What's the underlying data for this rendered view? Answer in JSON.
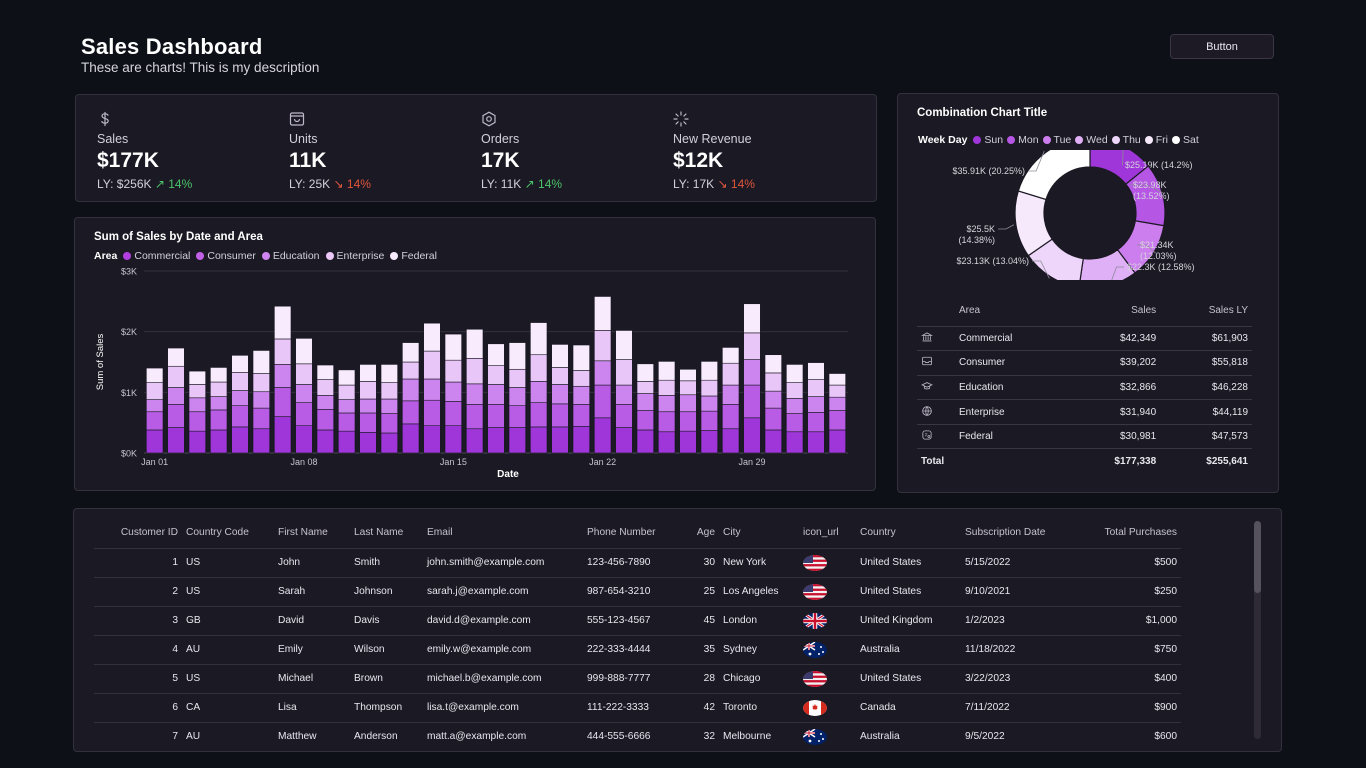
{
  "header": {
    "title": "Sales Dashboard",
    "description": "These are charts! This is my description",
    "button_label": "Button"
  },
  "kpis": [
    {
      "icon": "dollar-icon",
      "label": "Sales",
      "value": "$177K",
      "ly": "LY: $256K",
      "trend": "up",
      "arrow": "↗",
      "change": "14%"
    },
    {
      "icon": "box-icon",
      "label": "Units",
      "value": "11K",
      "ly": "LY: 25K",
      "trend": "down",
      "arrow": "↘",
      "change": "14%"
    },
    {
      "icon": "hexagon-icon",
      "label": "Orders",
      "value": "17K",
      "ly": "LY: 11K",
      "trend": "up",
      "arrow": "↗",
      "change": "14%"
    },
    {
      "icon": "loader-icon",
      "label": "New Revenue",
      "value": "$12K",
      "ly": "LY: 17K",
      "trend": "down",
      "arrow": "↘",
      "change": "14%"
    }
  ],
  "colors": {
    "commercial": "#9e36d9",
    "consumer": "#b85ce6",
    "education": "#cc85ef",
    "enterprise": "#e9c6f8",
    "federal": "#f8ebfd",
    "trend_up": "#4cc46a",
    "trend_down": "#e0573d"
  },
  "bar_chart": {
    "title": "Sum of Sales by Date and Area",
    "legend_title": "Area",
    "legend": [
      "Commercial",
      "Consumer",
      "Education",
      "Enterprise",
      "Federal"
    ]
  },
  "chart_data": [
    {
      "type": "bar",
      "stacked": true,
      "title": "Sum of Sales by Date and Area",
      "xlabel": "Date",
      "ylabel": "Sum of Sales",
      "ylim": [
        0,
        3000
      ],
      "y_ticks": [
        "$0K",
        "$1K",
        "$2K",
        "$3K"
      ],
      "x_tick_labels": [
        "Jan 01",
        "Jan 08",
        "Jan 15",
        "Jan 22",
        "Jan 29"
      ],
      "categories": [
        "Jan 01",
        "Jan 02",
        "Jan 03",
        "Jan 04",
        "Jan 05",
        "Jan 06",
        "Jan 07",
        "Jan 08",
        "Jan 09",
        "Jan 10",
        "Jan 11",
        "Jan 12",
        "Jan 13",
        "Jan 14",
        "Jan 15",
        "Jan 16",
        "Jan 17",
        "Jan 18",
        "Jan 19",
        "Jan 20",
        "Jan 21",
        "Jan 22",
        "Jan 23",
        "Jan 24",
        "Jan 25",
        "Jan 26",
        "Jan 27",
        "Jan 28",
        "Jan 29",
        "Jan 30",
        "Jan 31",
        "Feb 01",
        "Feb 02"
      ],
      "legend_position": "top-left",
      "grid": true,
      "series": [
        {
          "name": "Commercial",
          "values": [
            380,
            420,
            360,
            380,
            430,
            400,
            600,
            450,
            380,
            360,
            340,
            330,
            480,
            450,
            450,
            400,
            420,
            420,
            430,
            430,
            440,
            580,
            420,
            380,
            350,
            360,
            370,
            400,
            580,
            380,
            350,
            350,
            380
          ]
        },
        {
          "name": "Consumer",
          "values": [
            300,
            380,
            320,
            330,
            350,
            340,
            480,
            380,
            340,
            300,
            320,
            320,
            380,
            420,
            400,
            400,
            380,
            360,
            400,
            380,
            360,
            540,
            380,
            320,
            330,
            320,
            320,
            400,
            540,
            360,
            300,
            320,
            320
          ]
        },
        {
          "name": "Education",
          "values": [
            200,
            280,
            230,
            220,
            250,
            270,
            380,
            300,
            230,
            220,
            230,
            240,
            360,
            350,
            320,
            340,
            330,
            300,
            350,
            320,
            300,
            400,
            320,
            280,
            270,
            280,
            250,
            320,
            420,
            280,
            250,
            260,
            220
          ]
        },
        {
          "name": "Enterprise",
          "values": [
            280,
            350,
            220,
            240,
            300,
            300,
            420,
            340,
            260,
            240,
            290,
            270,
            280,
            460,
            360,
            420,
            310,
            300,
            440,
            280,
            260,
            500,
            420,
            200,
            250,
            230,
            260,
            360,
            440,
            300,
            260,
            280,
            200
          ]
        },
        {
          "name": "Federal",
          "values": [
            240,
            300,
            220,
            240,
            280,
            380,
            540,
            420,
            240,
            250,
            280,
            300,
            320,
            460,
            430,
            480,
            360,
            440,
            530,
            380,
            420,
            560,
            480,
            290,
            310,
            190,
            310,
            260,
            480,
            300,
            300,
            280,
            190
          ]
        }
      ]
    },
    {
      "type": "pie",
      "donut": true,
      "title": "Combination Chart Title",
      "legend_title": "Week Day",
      "legend_position": "top-left",
      "labels": [
        "Sun",
        "Mon",
        "Tue",
        "Wed",
        "Thu",
        "Fri",
        "Sat"
      ],
      "values": [
        25.19,
        23.98,
        21.34,
        22.3,
        23.13,
        25.5,
        35.91
      ],
      "data_labels": [
        "$25.19K (14.2%)",
        "$23.98K\n(13.52%)",
        "$21.34K\n(12.03%)",
        "$22.3K (12.58%)",
        "$23.13K (13.04%)",
        "$25.5K\n(14.38%)",
        "$35.91K (20.25%)"
      ],
      "colors": [
        "#9e36d9",
        "#b556e4",
        "#cc7eee",
        "#dfb0f5",
        "#eed6fa",
        "#f6e9fc",
        "#ffffff"
      ]
    }
  ],
  "area_table": {
    "headers": [
      "Area",
      "Sales",
      "Sales LY"
    ],
    "rows": [
      {
        "icon": "bank-icon",
        "area": "Commercial",
        "sales": "$42,349",
        "sales_ly": "$61,903"
      },
      {
        "icon": "tray-icon",
        "area": "Consumer",
        "sales": "$39,202",
        "sales_ly": "$55,818"
      },
      {
        "icon": "graduation-cap-icon",
        "area": "Education",
        "sales": "$32,866",
        "sales_ly": "$46,228"
      },
      {
        "icon": "globe-icon",
        "area": "Enterprise",
        "sales": "$31,940",
        "sales_ly": "$44,119"
      },
      {
        "icon": "badge-icon",
        "area": "Federal",
        "sales": "$30,981",
        "sales_ly": "$47,573"
      }
    ],
    "total": {
      "label": "Total",
      "sales": "$177,338",
      "sales_ly": "$255,641"
    }
  },
  "customer_table": {
    "headers": [
      "Customer ID",
      "Country Code",
      "First Name",
      "Last Name",
      "Email",
      "Phone Number",
      "Age",
      "City",
      "icon_url",
      "Country",
      "Subscription Date",
      "Total Purchases"
    ],
    "rows": [
      {
        "id": "1",
        "code": "US",
        "first": "John",
        "last": "Smith",
        "email": "john.smith@example.com",
        "phone": "123-456-7890",
        "age": "30",
        "city": "New York",
        "flag": "us-flag-icon",
        "country": "United States",
        "date": "5/15/2022",
        "total": "$500"
      },
      {
        "id": "2",
        "code": "US",
        "first": "Sarah",
        "last": "Johnson",
        "email": "sarah.j@example.com",
        "phone": "987-654-3210",
        "age": "25",
        "city": "Los Angeles",
        "flag": "us-flag-icon",
        "country": "United States",
        "date": "9/10/2021",
        "total": "$250"
      },
      {
        "id": "3",
        "code": "GB",
        "first": "David",
        "last": "Davis",
        "email": "david.d@example.com",
        "phone": "555-123-4567",
        "age": "45",
        "city": "London",
        "flag": "gb-flag-icon",
        "country": "United Kingdom",
        "date": "1/2/2023",
        "total": "$1,000"
      },
      {
        "id": "4",
        "code": "AU",
        "first": "Emily",
        "last": "Wilson",
        "email": "emily.w@example.com",
        "phone": "222-333-4444",
        "age": "35",
        "city": "Sydney",
        "flag": "au-flag-icon",
        "country": "Australia",
        "date": "11/18/2022",
        "total": "$750"
      },
      {
        "id": "5",
        "code": "US",
        "first": "Michael",
        "last": "Brown",
        "email": "michael.b@example.com",
        "phone": "999-888-7777",
        "age": "28",
        "city": "Chicago",
        "flag": "us-flag-icon",
        "country": "United States",
        "date": "3/22/2023",
        "total": "$400"
      },
      {
        "id": "6",
        "code": "CA",
        "first": "Lisa",
        "last": "Thompson",
        "email": "lisa.t@example.com",
        "phone": "111-222-3333",
        "age": "42",
        "city": "Toronto",
        "flag": "ca-flag-icon",
        "country": "Canada",
        "date": "7/11/2022",
        "total": "$900"
      },
      {
        "id": "7",
        "code": "AU",
        "first": "Matthew",
        "last": "Anderson",
        "email": "matt.a@example.com",
        "phone": "444-555-6666",
        "age": "32",
        "city": "Melbourne",
        "flag": "au-flag-icon",
        "country": "Australia",
        "date": "9/5/2022",
        "total": "$600"
      }
    ]
  }
}
